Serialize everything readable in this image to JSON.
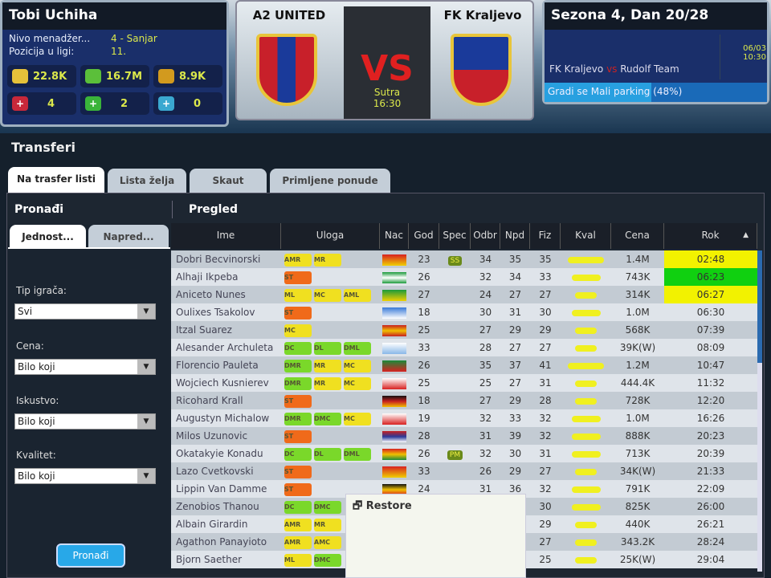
{
  "manager": {
    "name": "Tobi Uchiha",
    "level_label": "Nivo menadžer...",
    "level_value": "4 - Sanjar",
    "position_label": "Pozicija u ligi:",
    "position_value": "11.",
    "stats": [
      {
        "icon": "fans-icon",
        "value": "22.8K",
        "color": "#e6c23a"
      },
      {
        "icon": "money-icon",
        "value": "16.7M",
        "color": "#5bbf3a"
      },
      {
        "icon": "token-icon",
        "value": "8.9K",
        "color": "#d29a1e"
      },
      {
        "icon": "red-medkit-icon",
        "value": "4",
        "color": "#c8283a"
      },
      {
        "icon": "green-medkit-icon",
        "value": "2",
        "color": "#3ab43a"
      },
      {
        "icon": "blue-medkit-icon",
        "value": "0",
        "color": "#3aa8d0"
      }
    ]
  },
  "match": {
    "home": "A2 UNITED",
    "away": "FK Kraljevo",
    "vs": "VS",
    "day": "Sutra",
    "time": "16:30"
  },
  "season": {
    "title": "Sezona 4, Dan 20/28",
    "fixture_home": "FK Kraljevo",
    "fixture_away": "Rudolf Team",
    "date": "06/03",
    "time": "10:30",
    "construction": "Gradi se Mali parking (48%)",
    "construction_progress": 48
  },
  "page": {
    "title": "Transferi",
    "tabs": [
      "Na trasfer listi",
      "Lista želja",
      "Skaut",
      "Primljene ponude"
    ],
    "active_tab": 0
  },
  "search": {
    "title": "Pronađi",
    "tabs": [
      "Jednost...",
      "Napred..."
    ],
    "filters": [
      {
        "label": "Tip igrača:",
        "value": "Svi"
      },
      {
        "label": "Cena:",
        "value": "Bilo koji"
      },
      {
        "label": "Iskustvo:",
        "value": "Bilo koji"
      },
      {
        "label": "Kvalitet:",
        "value": "Bilo koji"
      }
    ],
    "button": "Pronađi"
  },
  "overview": {
    "title": "Pregled",
    "columns": [
      "Ime",
      "Uloga",
      "Nac",
      "God",
      "Spec",
      "Odbr",
      "Npd",
      "Fiz",
      "Kval",
      "Cena",
      "Rok"
    ],
    "sort_indicator": "▲",
    "rows": [
      [
        "Dobri Becvinorski",
        [
          "AMR",
          "MR"
        ],
        "mk",
        "23",
        "SS",
        "34",
        "35",
        "35",
        5,
        "1.4M",
        "02:48",
        "#f2f200"
      ],
      [
        "Alhaji Ikpeba",
        [
          "ST"
        ],
        "ng",
        "26",
        "",
        "32",
        "34",
        "33",
        4,
        "743K",
        "06:23",
        "#10d010"
      ],
      [
        "Aniceto Nunes",
        [
          "ML",
          "MC",
          "AML"
        ],
        "br",
        "27",
        "",
        "24",
        "27",
        "27",
        3,
        "314K",
        "06:27",
        "#f2f200"
      ],
      [
        "Oulixes Tsakolov",
        [
          "ST"
        ],
        "gr",
        "18",
        "",
        "30",
        "31",
        "30",
        4,
        "1.0M",
        "06:30",
        ""
      ],
      [
        "Itzal Suarez",
        [
          "MC"
        ],
        "es",
        "25",
        "",
        "27",
        "29",
        "29",
        3,
        "568K",
        "07:39",
        ""
      ],
      [
        "Alesander Archuleta",
        [
          "DC",
          "DL",
          "DML"
        ],
        "uy",
        "33",
        "",
        "28",
        "27",
        "27",
        3,
        "39K(W)",
        "08:09",
        ""
      ],
      [
        "Florencio Pauleta",
        [
          "DMR",
          "MR",
          "MC"
        ],
        "pt",
        "26",
        "",
        "35",
        "37",
        "41",
        5,
        "1.2M",
        "10:47",
        ""
      ],
      [
        "Wojciech Kusnierev",
        [
          "DMR",
          "MR",
          "MC"
        ],
        "pl",
        "25",
        "",
        "25",
        "27",
        "31",
        3,
        "444.4K",
        "11:32",
        ""
      ],
      [
        "Ricohard Krall",
        [
          "ST"
        ],
        "de",
        "18",
        "",
        "27",
        "29",
        "28",
        3,
        "728K",
        "12:20",
        ""
      ],
      [
        "Augustyn Michalow",
        [
          "DMR",
          "DMC",
          "MC"
        ],
        "pl",
        "19",
        "",
        "32",
        "33",
        "32",
        4,
        "1.0M",
        "16:26",
        ""
      ],
      [
        "Milos Uzunovic",
        [
          "ST"
        ],
        "rs",
        "28",
        "",
        "31",
        "39",
        "32",
        4,
        "888K",
        "20:23",
        ""
      ],
      [
        "Okatakyie Konadu",
        [
          "DC",
          "DL",
          "DML"
        ],
        "gh",
        "26",
        "PM",
        "32",
        "30",
        "31",
        4,
        "713K",
        "20:39",
        ""
      ],
      [
        "Lazo Cvetkovski",
        [
          "ST"
        ],
        "mk",
        "33",
        "",
        "26",
        "29",
        "27",
        3,
        "34K(W)",
        "21:33",
        ""
      ],
      [
        "Lippin Van Damme",
        [
          "ST"
        ],
        "be",
        "24",
        "",
        "31",
        "36",
        "32",
        4,
        "791K",
        "22:09",
        ""
      ],
      [
        "Zenobios Thanou",
        [
          "DC",
          "DMC"
        ],
        "",
        "",
        "",
        "",
        "",
        "30",
        4,
        "825K",
        "26:00",
        ""
      ],
      [
        "Albain Girardin",
        [
          "AMR",
          "MR"
        ],
        "",
        "",
        "",
        "",
        "",
        "29",
        3,
        "440K",
        "26:21",
        ""
      ],
      [
        "Agathon Panayioto",
        [
          "AMR",
          "AMC"
        ],
        "",
        "",
        "",
        "",
        "",
        "27",
        3,
        "343.2K",
        "28:24",
        ""
      ],
      [
        "Bjorn Saether",
        [
          "ML",
          "DMC"
        ],
        "",
        "",
        "",
        "",
        "",
        "25",
        3,
        "25K(W)",
        "29:04",
        ""
      ]
    ]
  },
  "context_menu": {
    "item": "Restore"
  }
}
